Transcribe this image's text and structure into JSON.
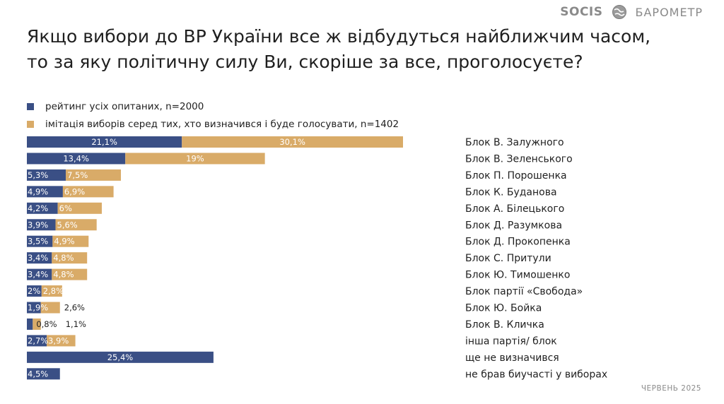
{
  "header": {
    "logo_text": "SOCIS",
    "brand_name": "БАРОМЕТР",
    "globe_icon": "globe-icon"
  },
  "title": "Якщо вибори до ВР України все ж відбудуться найближчим часом, то за яку політичну силу Ви, скоріше за все, проголосуєте?",
  "footer": {
    "date": "ЧЕРВЕНЬ 2025"
  },
  "colors": {
    "series_1": "#3a4f85",
    "series_2": "#d9ab68"
  },
  "chart_data": {
    "type": "bar",
    "orientation": "horizontal",
    "layout": "stacked-adjacent",
    "categories": [
      "Блок В. Залужного",
      "Блок В. Зеленського",
      "Блок П. Порошенка",
      "Блок К. Буданова",
      "Блок А. Білецького",
      "Блок Д. Разумкова",
      "Блок Д. Прокопенка",
      "Блок С. Притули",
      "Блок Ю. Тимошенко",
      "Блок партії «Свобода»",
      "Блок Ю. Бойка",
      "Блок В. Кличка",
      "інша партія/ блок",
      "ще не визначився",
      "не брав биучасті у виборах"
    ],
    "series": [
      {
        "name": "рейтинг усіх опитаних, n=2000",
        "color": "#3a4f85",
        "values": [
          21.1,
          13.4,
          5.3,
          4.9,
          4.2,
          3.9,
          3.5,
          3.4,
          3.4,
          2,
          1.9,
          0.8,
          2.7,
          25.4,
          4.5
        ],
        "labels": [
          "21,1%",
          "13,4%",
          "5,3%",
          "4,9%",
          "4,2%",
          "3,9%",
          "3,5%",
          "3,4%",
          "3,4%",
          "2%",
          "1,9%",
          "0,8%",
          "2,7%",
          "25,4%",
          "4,5%"
        ]
      },
      {
        "name": "імітація виборів серед тих, хто визначився і буде голосувати, n=1402",
        "color": "#d9ab68",
        "values": [
          30.1,
          19,
          7.5,
          6.9,
          6,
          5.6,
          4.9,
          4.8,
          4.8,
          2.8,
          2.6,
          1.1,
          3.9,
          null,
          null
        ],
        "labels": [
          "30,1%",
          "19%",
          "7,5%",
          "6,9%",
          "6%",
          "5,6%",
          "4,9%",
          "4,8%",
          "4,8%",
          "2,8%",
          "2,6%",
          "1,1%",
          "3,9%",
          "",
          ""
        ]
      }
    ],
    "xlim": [
      0,
      51.2
    ],
    "grid": false,
    "legend_position": "top-left"
  }
}
